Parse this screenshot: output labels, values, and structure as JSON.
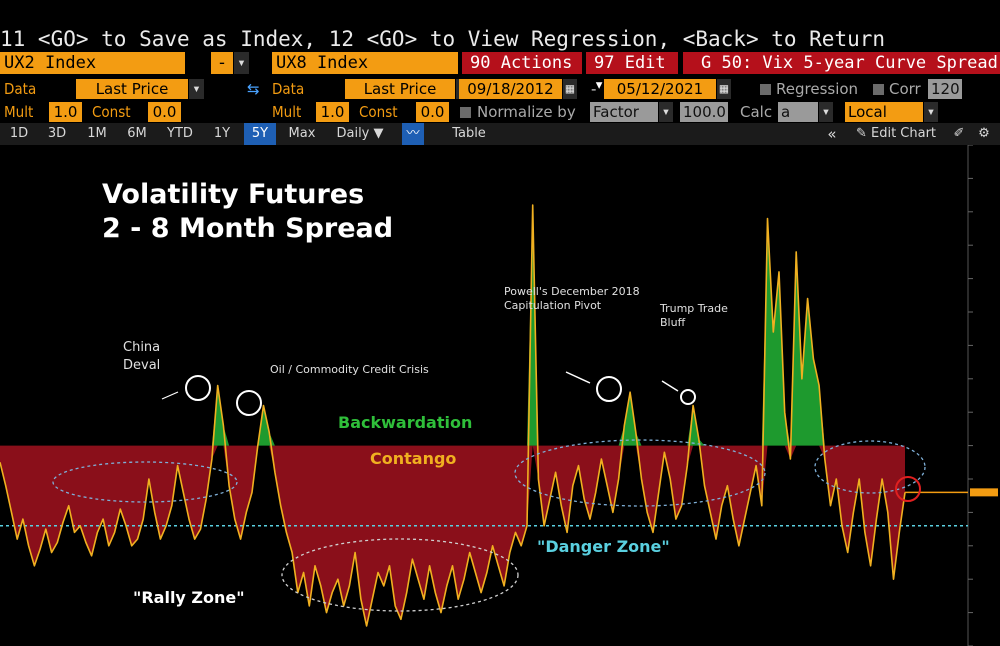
{
  "command_line": "11 <GO> to Save as Index, 12 <GO> to View Regression, <Back> to Return",
  "row1": {
    "security1": "UX2 Index",
    "minus": "-",
    "security2": "UX8 Index",
    "actions": "90 Actions",
    "edit": "97 Edit",
    "title": "G 50: Vix 5-year Curve Spread"
  },
  "row2": {
    "data_label_1": "Data",
    "data_value_1": "Last Price",
    "data_label_2": "Data",
    "data_value_2": "Last Price",
    "start_date": "09/18/2012",
    "date_dash": "-",
    "end_date": "05/12/2021",
    "regression_label": "Regression",
    "corr_label": "Corr",
    "corr_value": "120"
  },
  "row3": {
    "mult_label_1": "Mult",
    "mult_value_1": "1.0",
    "const_label_1": "Const",
    "const_value_1": "0.0",
    "mult_label_2": "Mult",
    "mult_value_2": "1.0",
    "const_label_2": "Const",
    "const_value_2": "0.0",
    "normalize_label": "Normalize by",
    "normalize_value": "Factor",
    "factor_value": "100.0",
    "calc_label": "Calc",
    "calc_value": "a",
    "local_value": "Local"
  },
  "toolbar": {
    "periods": [
      "1D",
      "3D",
      "1M",
      "6M",
      "YTD",
      "1Y",
      "5Y",
      "Max"
    ],
    "selected_period": "5Y",
    "frequency": "Daily ▼",
    "table_label": "Table",
    "edit_chart_label": "Edit Chart"
  },
  "colors": {
    "bloomberg_orange": "#f39c12",
    "line": "#f0b020",
    "contango_fill": "#8a0f1a",
    "backwardation_fill": "#1e9a2e",
    "danger_line": "#5ad0e0",
    "selected_tab": "#1e5fb4"
  },
  "chart_data": {
    "type": "area",
    "title": "Volatility Futures\n2 - 8 Month Spread",
    "annotations": {
      "china": "China\nDeval",
      "oil": "Oil / Commodity Credit Crisis",
      "powell": "Powell's December 2018\nCapitulation Pivot",
      "trump": "Trump Trade\nBluff",
      "backwardation": "Backwardation",
      "contango": "Contango",
      "danger": "\"Danger Zone\"",
      "rally": "\"Rally Zone\""
    },
    "start_date": "09/18/2012",
    "end_date": "05/12/2021",
    "baseline": 0,
    "danger_level": -2.4,
    "ylim": [
      -6,
      9
    ],
    "series": [
      {
        "values": [
          -0.5,
          -1.2,
          -2.0,
          -2.8,
          -2.2,
          -3.0,
          -3.6,
          -3.1,
          -2.5,
          -3.2,
          -2.9,
          -2.3,
          -1.8,
          -2.6,
          -2.4,
          -2.9,
          -3.3,
          -2.6,
          -2.2,
          -3.0,
          -2.6,
          -1.9,
          -2.4,
          -3.0,
          -2.8,
          -2.2,
          -1.0,
          -2.0,
          -2.8,
          -2.4,
          -1.8,
          -0.6,
          -1.4,
          -2.2,
          -2.8,
          -2.5,
          -1.6,
          -0.4,
          1.8,
          0.6,
          -1.2,
          -2.2,
          -2.8,
          -2.0,
          -1.4,
          0.0,
          1.2,
          0.4,
          -0.8,
          -1.8,
          -2.6,
          -3.2,
          -4.4,
          -3.8,
          -4.8,
          -3.6,
          -4.2,
          -5.0,
          -4.4,
          -4.0,
          -4.8,
          -4.2,
          -3.2,
          -4.6,
          -5.4,
          -4.6,
          -3.8,
          -4.2,
          -3.6,
          -4.8,
          -5.2,
          -4.4,
          -3.4,
          -4.0,
          -4.6,
          -3.6,
          -4.4,
          -5.0,
          -4.2,
          -3.6,
          -4.6,
          -4.0,
          -3.2,
          -3.8,
          -4.4,
          -3.8,
          -3.0,
          -3.6,
          -4.2,
          -3.2,
          -2.6,
          -3.0,
          -2.4,
          7.2,
          -1.0,
          -2.4,
          -1.6,
          -0.8,
          -1.8,
          -2.6,
          -1.2,
          -0.6,
          -1.6,
          -2.2,
          -1.4,
          -0.4,
          -1.2,
          -2.0,
          -1.0,
          0.6,
          1.6,
          0.4,
          -1.0,
          -2.0,
          -2.6,
          -1.4,
          -0.2,
          -1.0,
          -2.2,
          -1.8,
          -0.6,
          1.2,
          0.2,
          -1.2,
          -2.0,
          -2.8,
          -1.8,
          -1.2,
          -2.2,
          -3.0,
          -2.2,
          -1.4,
          -0.6,
          -1.8,
          6.8,
          3.4,
          5.2,
          1.0,
          -0.4,
          5.8,
          2.0,
          4.4,
          2.6,
          1.8,
          -0.4,
          -1.8,
          -1.0,
          -2.4,
          -3.2,
          -2.0,
          -1.0,
          -2.6,
          -3.6,
          -2.2,
          -1.0,
          -2.0,
          -4.0,
          -2.6,
          -1.4
        ]
      }
    ]
  }
}
